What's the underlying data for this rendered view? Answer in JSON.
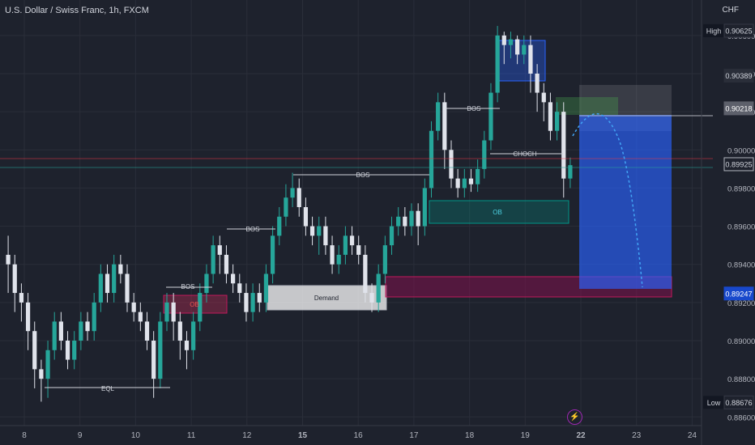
{
  "header": {
    "title": "U.S. Dollar / Swiss Franc, 1h, FXCM",
    "currency": "CHF"
  },
  "chart_data": {
    "type": "candlestick",
    "x_ticks": [
      "8",
      "9",
      "10",
      "11",
      "12",
      "15",
      "16",
      "17",
      "18",
      "19",
      "22",
      "23",
      "24"
    ],
    "y_ticks": [
      "0.90600",
      "0.90400",
      "0.90200",
      "0.90000",
      "0.89800",
      "0.89600",
      "0.89400",
      "0.89200",
      "0.89000",
      "0.88800",
      "0.88600"
    ],
    "ylim": [
      0.8858,
      0.9068
    ],
    "price_labels": [
      {
        "label": "High",
        "value": "0.90625"
      },
      {
        "label": "",
        "value": "0.90389"
      },
      {
        "label": "",
        "value": "0.90218"
      },
      {
        "label": "",
        "value": "0.89925"
      },
      {
        "label": "",
        "value": "0.89247"
      },
      {
        "label": "Low",
        "value": "0.88676"
      }
    ],
    "annotations": [
      "EQL",
      "BOS",
      "BOS",
      "BOS",
      "BOS",
      "CHOCH",
      "Demand",
      "OB",
      "OB"
    ],
    "series": [
      {
        "name": "",
        "points": [
          [
            0.8945,
            0.894,
            0.8955,
            0.8925
          ],
          [
            0.894,
            0.8925,
            0.8945,
            0.8915
          ],
          [
            0.8925,
            0.892,
            0.893,
            0.891
          ],
          [
            0.892,
            0.8905,
            0.8925,
            0.8895
          ],
          [
            0.8905,
            0.8885,
            0.891,
            0.8875
          ],
          [
            0.8885,
            0.888,
            0.889,
            0.8868
          ],
          [
            0.888,
            0.8895,
            0.89,
            0.887
          ],
          [
            0.8895,
            0.891,
            0.8915,
            0.889
          ],
          [
            0.891,
            0.89,
            0.8915,
            0.8895
          ],
          [
            0.89,
            0.889,
            0.8905,
            0.8885
          ],
          [
            0.889,
            0.89,
            0.8905,
            0.8885
          ],
          [
            0.89,
            0.891,
            0.8915,
            0.8895
          ],
          [
            0.891,
            0.8905,
            0.8915,
            0.89
          ],
          [
            0.8905,
            0.892,
            0.8925,
            0.89
          ],
          [
            0.892,
            0.8935,
            0.894,
            0.8915
          ],
          [
            0.8935,
            0.8925,
            0.894,
            0.892
          ],
          [
            0.8925,
            0.894,
            0.8945,
            0.892
          ],
          [
            0.894,
            0.8935,
            0.8945,
            0.893
          ],
          [
            0.8935,
            0.892,
            0.894,
            0.8915
          ],
          [
            0.892,
            0.8915,
            0.8925,
            0.891
          ],
          [
            0.8915,
            0.891,
            0.892,
            0.8905
          ],
          [
            0.891,
            0.89,
            0.8915,
            0.8895
          ],
          [
            0.89,
            0.888,
            0.8905,
            0.887
          ],
          [
            0.888,
            0.891,
            0.8915,
            0.8875
          ],
          [
            0.891,
            0.892,
            0.8925,
            0.8905
          ],
          [
            0.892,
            0.891,
            0.8925,
            0.89
          ],
          [
            0.891,
            0.89,
            0.8915,
            0.889
          ],
          [
            0.89,
            0.8895,
            0.8905,
            0.8885
          ],
          [
            0.8895,
            0.891,
            0.8915,
            0.889
          ],
          [
            0.891,
            0.8925,
            0.893,
            0.8905
          ],
          [
            0.8925,
            0.8935,
            0.894,
            0.892
          ],
          [
            0.8935,
            0.895,
            0.8955,
            0.893
          ],
          [
            0.895,
            0.8945,
            0.8955,
            0.8935
          ],
          [
            0.8945,
            0.8935,
            0.895,
            0.893
          ],
          [
            0.8935,
            0.893,
            0.894,
            0.8925
          ],
          [
            0.893,
            0.8925,
            0.8935,
            0.892
          ],
          [
            0.8925,
            0.8915,
            0.893,
            0.891
          ],
          [
            0.8915,
            0.8925,
            0.893,
            0.891
          ],
          [
            0.8925,
            0.892,
            0.893,
            0.8915
          ],
          [
            0.892,
            0.8935,
            0.894,
            0.8915
          ],
          [
            0.8935,
            0.8955,
            0.896,
            0.893
          ],
          [
            0.8955,
            0.8965,
            0.897,
            0.895
          ],
          [
            0.8965,
            0.8975,
            0.8982,
            0.896
          ],
          [
            0.8975,
            0.898,
            0.8988,
            0.897
          ],
          [
            0.898,
            0.897,
            0.8985,
            0.8965
          ],
          [
            0.897,
            0.896,
            0.8975,
            0.8955
          ],
          [
            0.896,
            0.8955,
            0.8965,
            0.895
          ],
          [
            0.8955,
            0.896,
            0.8965,
            0.8945
          ],
          [
            0.896,
            0.895,
            0.8965,
            0.8945
          ],
          [
            0.895,
            0.894,
            0.8955,
            0.8935
          ],
          [
            0.894,
            0.8945,
            0.895,
            0.8935
          ],
          [
            0.8945,
            0.8955,
            0.896,
            0.894
          ],
          [
            0.8955,
            0.895,
            0.896,
            0.8945
          ],
          [
            0.895,
            0.8945,
            0.8955,
            0.894
          ],
          [
            0.8945,
            0.8925,
            0.895,
            0.892
          ],
          [
            0.8925,
            0.892,
            0.893,
            0.8915
          ],
          [
            0.892,
            0.8935,
            0.894,
            0.8915
          ],
          [
            0.8935,
            0.895,
            0.8955,
            0.893
          ],
          [
            0.895,
            0.896,
            0.8965,
            0.8945
          ],
          [
            0.896,
            0.8965,
            0.897,
            0.8955
          ],
          [
            0.8965,
            0.896,
            0.897,
            0.8955
          ],
          [
            0.896,
            0.8968,
            0.8972,
            0.8955
          ],
          [
            0.8968,
            0.896,
            0.8972,
            0.895
          ],
          [
            0.896,
            0.898,
            0.8985,
            0.8955
          ],
          [
            0.898,
            0.901,
            0.9015,
            0.8975
          ],
          [
            0.901,
            0.9025,
            0.903,
            0.9005
          ],
          [
            0.9025,
            0.9,
            0.903,
            0.899
          ],
          [
            0.9,
            0.8985,
            0.9005,
            0.898
          ],
          [
            0.8985,
            0.898,
            0.899,
            0.8975
          ],
          [
            0.898,
            0.8985,
            0.899,
            0.8975
          ],
          [
            0.8985,
            0.8982,
            0.899,
            0.8978
          ],
          [
            0.8982,
            0.899,
            0.8995,
            0.8978
          ],
          [
            0.899,
            0.9005,
            0.901,
            0.8985
          ],
          [
            0.9005,
            0.903,
            0.9035,
            0.9
          ],
          [
            0.903,
            0.906,
            0.9065,
            0.9025
          ],
          [
            0.906,
            0.9055,
            0.9062,
            0.9045
          ],
          [
            0.9055,
            0.9058,
            0.9062,
            0.9048
          ],
          [
            0.9058,
            0.905,
            0.906,
            0.9045
          ],
          [
            0.905,
            0.9055,
            0.906,
            0.9045
          ],
          [
            0.9055,
            0.904,
            0.906,
            0.903
          ],
          [
            0.904,
            0.903,
            0.9045,
            0.902
          ],
          [
            0.903,
            0.9025,
            0.9035,
            0.9015
          ],
          [
            0.9025,
            0.901,
            0.903,
            0.9005
          ],
          [
            0.901,
            0.902,
            0.9025,
            0.9005
          ],
          [
            0.902,
            0.8985,
            0.9025,
            0.8975
          ],
          [
            0.8985,
            0.8992,
            0.8996,
            0.898
          ]
        ]
      }
    ]
  }
}
